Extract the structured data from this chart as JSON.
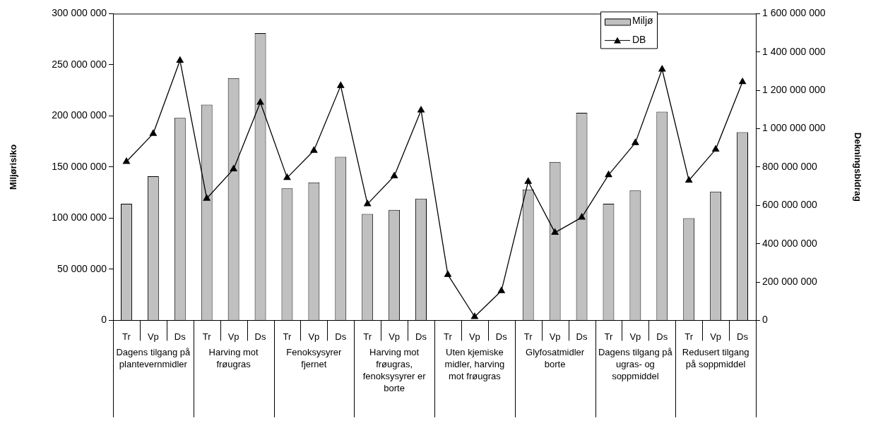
{
  "chart_data": {
    "type": "bar",
    "xlabel": null,
    "ylabel": "Miljørisiko",
    "y2label": "Dekningsbidrag",
    "categories": [
      "Tr",
      "Vp",
      "Ds",
      "Tr",
      "Vp",
      "Ds",
      "Tr",
      "Vp",
      "Ds",
      "Tr",
      "Vp",
      "Ds",
      "Tr",
      "Vp",
      "Ds",
      "Tr",
      "Vp",
      "Ds",
      "Tr",
      "Vp",
      "Ds",
      "Tr",
      "Vp",
      "Ds"
    ],
    "annotations": [
      "Dagens tilgang på plantevernmidler",
      "Harving mot frøugras",
      "Fenoksysyrer fjernet",
      "Harving mot frøugras, fenoksysyrer er borte",
      "Uten kjemiske midler, harving mot frøugras",
      "Glyfosatmidler borte",
      "Dagens tilgang på ugras- og soppmiddel",
      "Redusert tilgang på soppmiddel"
    ],
    "series": [
      {
        "name": "Miljø",
        "color": "#c0c0c0",
        "values": [
          114000000,
          141000000,
          198000000,
          211000000,
          237000000,
          281000000,
          129000000,
          135000000,
          160000000,
          104000000,
          108000000,
          119000000,
          null,
          null,
          null,
          128000000,
          155000000,
          203000000,
          114000000,
          127000000,
          204000000,
          100000000,
          126000000,
          184000000
        ]
      },
      {
        "name": "DB",
        "type": "line",
        "axis": "y2",
        "color": "#000000",
        "marker": "triangle",
        "values": [
          828000000,
          974000000,
          1356000000,
          636000000,
          789000000,
          1137000000,
          744000000,
          886000000,
          1224000000,
          607000000,
          753000000,
          1096000000,
          238000000,
          19000000,
          154000000,
          724000000,
          458000000,
          537000000,
          759000000,
          926000000,
          1310000000,
          730000000,
          892000000,
          1244000000
        ]
      }
    ],
    "ylim": [
      0,
      300000000
    ],
    "yticks": [
      {
        "value": 0,
        "label": "0"
      },
      {
        "value": 50000000,
        "label": "50 000 000"
      },
      {
        "value": 100000000,
        "label": "100 000 000"
      },
      {
        "value": 150000000,
        "label": "150 000 000"
      },
      {
        "value": 200000000,
        "label": "200 000 000"
      },
      {
        "value": 250000000,
        "label": "250 000 000"
      },
      {
        "value": 300000000,
        "label": "300 000 000"
      }
    ],
    "y2lim": [
      0,
      1600000000
    ],
    "y2ticks": [
      {
        "value": 0,
        "label": "0"
      },
      {
        "value": 200000000,
        "label": "200 000 000"
      },
      {
        "value": 400000000,
        "label": "400 000 000"
      },
      {
        "value": 600000000,
        "label": "600 000 000"
      },
      {
        "value": 800000000,
        "label": "800 000 000"
      },
      {
        "value": 1000000000,
        "label": "1 000 000 000"
      },
      {
        "value": 1200000000,
        "label": "1 200 000 000"
      },
      {
        "value": 1400000000,
        "label": "1 400 000 000"
      },
      {
        "value": 1600000000,
        "label": "1 600 000 000"
      }
    ],
    "legend": "top right",
    "grid": false
  }
}
